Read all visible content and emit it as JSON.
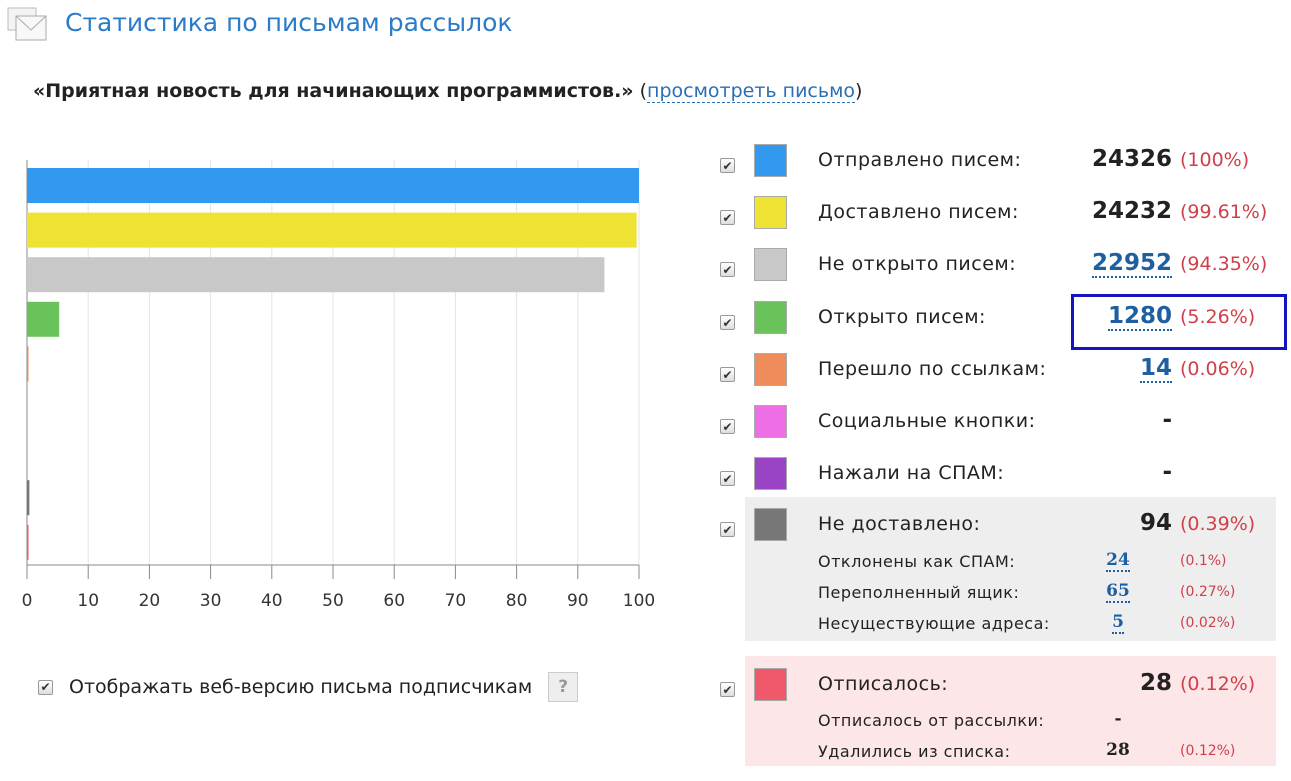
{
  "header": {
    "title": "Статистика по письмам рассылок",
    "icon": "envelope-icon"
  },
  "subject": {
    "title": "«Приятная новость для начинающих программистов.»",
    "open": "(",
    "link": "просмотреть письмо",
    "close": ")"
  },
  "web_version": {
    "label": "Отображать веб-версию письма подписчикам",
    "checked": true,
    "help": "?"
  },
  "legend": [
    {
      "label": "Отправлено писем:",
      "value": "24326",
      "pct": "(100%)",
      "color": "#3399ee",
      "link": false,
      "checked": true
    },
    {
      "label": "Доставлено писем:",
      "value": "24232",
      "pct": "(99.61%)",
      "color": "#eee233",
      "link": false,
      "checked": true
    },
    {
      "label": "Не открыто писем:",
      "value": "22952",
      "pct": "(94.35%)",
      "color": "#c8c8c8",
      "link": true,
      "checked": true
    },
    {
      "label": "Открыто писем:",
      "value": "1280",
      "pct": "(5.26%)",
      "color": "#6ac35a",
      "link": true,
      "checked": true
    },
    {
      "label": "Перешло по ссылкам:",
      "value": "14",
      "pct": "(0.06%)",
      "color": "#ee8c5c",
      "link": true,
      "checked": true
    },
    {
      "label": "Социальные кнопки:",
      "value": "-",
      "pct": "",
      "color": "#ee6ee6",
      "link": false,
      "checked": true
    },
    {
      "label": "Нажали на СПАМ:",
      "value": "-",
      "pct": "",
      "color": "#9944c4",
      "link": false,
      "checked": true
    },
    {
      "label": "Не доставлено:",
      "value": "94",
      "pct": "(0.39%)",
      "color": "#777777",
      "link": false,
      "checked": true
    },
    {
      "label": "Отписалось:",
      "value": "28",
      "pct": "(0.12%)",
      "color": "#f0596a",
      "link": false,
      "checked": true
    }
  ],
  "not_delivered_details": [
    {
      "label": "Отклонены как СПАМ:",
      "value": "24",
      "pct": "(0.1%)"
    },
    {
      "label": "Переполненный ящик:",
      "value": "65",
      "pct": "(0.27%)"
    },
    {
      "label": "Несуществующие адреса:",
      "value": "5",
      "pct": "(0.02%)"
    }
  ],
  "unsubscribed_details": [
    {
      "label": "Отписалось от рассылки:",
      "value": "-",
      "pct": ""
    },
    {
      "label": "Удалились из списка:",
      "value": "28",
      "pct": "(0.12%)"
    }
  ],
  "chart_data": {
    "type": "bar",
    "orientation": "horizontal",
    "categories": [
      "Отправлено писем",
      "Доставлено писем",
      "Не открыто писем",
      "Открыто писем",
      "Перешло по ссылкам",
      "Социальные кнопки",
      "Нажали на СПАМ",
      "Не доставлено",
      "Отписалось"
    ],
    "values": [
      100,
      99.61,
      94.35,
      5.26,
      0.06,
      0,
      0,
      0.39,
      0.12
    ],
    "colors": [
      "#3399ee",
      "#eee233",
      "#c8c8c8",
      "#6ac35a",
      "#ee8c5c",
      "#ee6ee6",
      "#9944c4",
      "#777777",
      "#f0596a"
    ],
    "xlim": [
      0,
      100
    ],
    "xticks": [
      "0",
      "10",
      "20",
      "30",
      "40",
      "50",
      "60",
      "70",
      "80",
      "90",
      "100"
    ],
    "grid": true
  }
}
